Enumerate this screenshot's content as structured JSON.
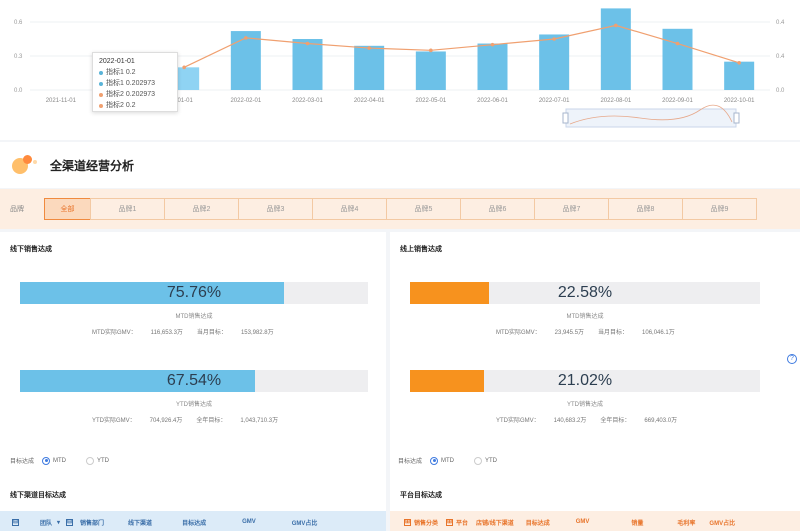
{
  "chart_data": {
    "type": "bar",
    "categories": [
      "2021-11-01",
      "2021-12-01",
      "2022-01-01",
      "2022-02-01",
      "2022-03-01",
      "2022-04-01",
      "2022-05-01",
      "2022-06-01",
      "2022-07-01",
      "2022-08-01",
      "2022-09-01",
      "2022-10-01"
    ],
    "category_labels": [
      "2021-11-01",
      "",
      "-01-01",
      "2022-02-01",
      "2022-03-01",
      "2022-04-01",
      "2022-05-01",
      "2022-06-01",
      "2022-07-01",
      "2022-08-01",
      "2022-09-01",
      "2022-10-01"
    ],
    "series": [
      {
        "name": "指标1",
        "type": "bar",
        "values": [
          0,
          0,
          0.2,
          0.52,
          0.45,
          0.39,
          0.34,
          0.41,
          0.49,
          0.72,
          0.54,
          0.25
        ]
      },
      {
        "name": "指标2",
        "type": "line",
        "values": [
          null,
          null,
          0.2,
          0.46,
          0.41,
          0.37,
          0.35,
          0.4,
          0.45,
          0.57,
          0.41,
          0.24
        ]
      }
    ],
    "ylim_left": [
      0,
      0.6
    ],
    "ylim_right": [
      0,
      0.6
    ],
    "yticks_left": [
      "0.0",
      "0.3",
      "0.6"
    ],
    "yticks_right": [
      "0.0",
      "0.4",
      "0.4"
    ],
    "colors": {
      "bar": "#6cc1e8",
      "line": "#f0a070",
      "highlight_bar": "#8fd3f3"
    }
  },
  "tooltip": {
    "date": "2022-01-01",
    "rows": [
      {
        "label": "指标1 0.2",
        "color": "#5ab4d8"
      },
      {
        "label": "指标1 0.202973",
        "color": "#5ab4d8"
      },
      {
        "label": "指标2 0.202973",
        "color": "#f0a070"
      },
      {
        "label": "指标2 0.2",
        "color": "#f0a070"
      }
    ]
  },
  "section": {
    "title": "全渠道经营分析"
  },
  "brand": {
    "label": "品牌",
    "buttons": [
      "全部",
      "品牌1",
      "品牌2",
      "品牌3",
      "品牌4",
      "品牌5",
      "品牌6",
      "品牌7",
      "品牌8",
      "品牌9"
    ]
  },
  "offline": {
    "title": "线下销售达成",
    "mtd": {
      "pct": "75.76%",
      "value": 0.7576,
      "caption": "MTD销售达成",
      "actual_label": "MTD实际GMV：",
      "actual": "116,653.3万",
      "target_label": "当月目标：",
      "target": "153,982.8万"
    },
    "ytd": {
      "pct": "67.54%",
      "value": 0.6754,
      "caption": "YTD销售达成",
      "actual_label": "YTD实际GMV：",
      "actual": "704,926.4万",
      "target_label": "全年目标：",
      "target": "1,043,710.3万"
    },
    "target_label": "目标达成",
    "mtd_option": "MTD",
    "ytd_option": "YTD",
    "table_title": "线下渠道目标达成",
    "columns": [
      "团队",
      "销售部门",
      "线下渠道",
      "目标达成",
      "GMV",
      "GMV占比"
    ],
    "color": "#6cc1e8"
  },
  "online": {
    "title": "线上销售达成",
    "mtd": {
      "pct": "22.58%",
      "value": 0.2258,
      "caption": "MTD销售达成",
      "actual_label": "MTD实际GMV：",
      "actual": "23,945.5万",
      "target_label": "当月目标：",
      "target": "106,046.1万"
    },
    "ytd": {
      "pct": "21.02%",
      "value": 0.2102,
      "caption": "YTD销售达成",
      "actual_label": "YTD实际GMV：",
      "actual": "140,683.2万",
      "target_label": "全年目标：",
      "target": "669,403.0万"
    },
    "target_label": "目标达成",
    "mtd_option": "MTD",
    "ytd_option": "YTD",
    "table_title": "平台目标达成",
    "columns": [
      "销售分类",
      "平台",
      "店铺/线下渠道",
      "目标达成",
      "GMV",
      "销量",
      "毛利率",
      "GMV占比"
    ],
    "color": "#f7921e"
  },
  "help": "?"
}
